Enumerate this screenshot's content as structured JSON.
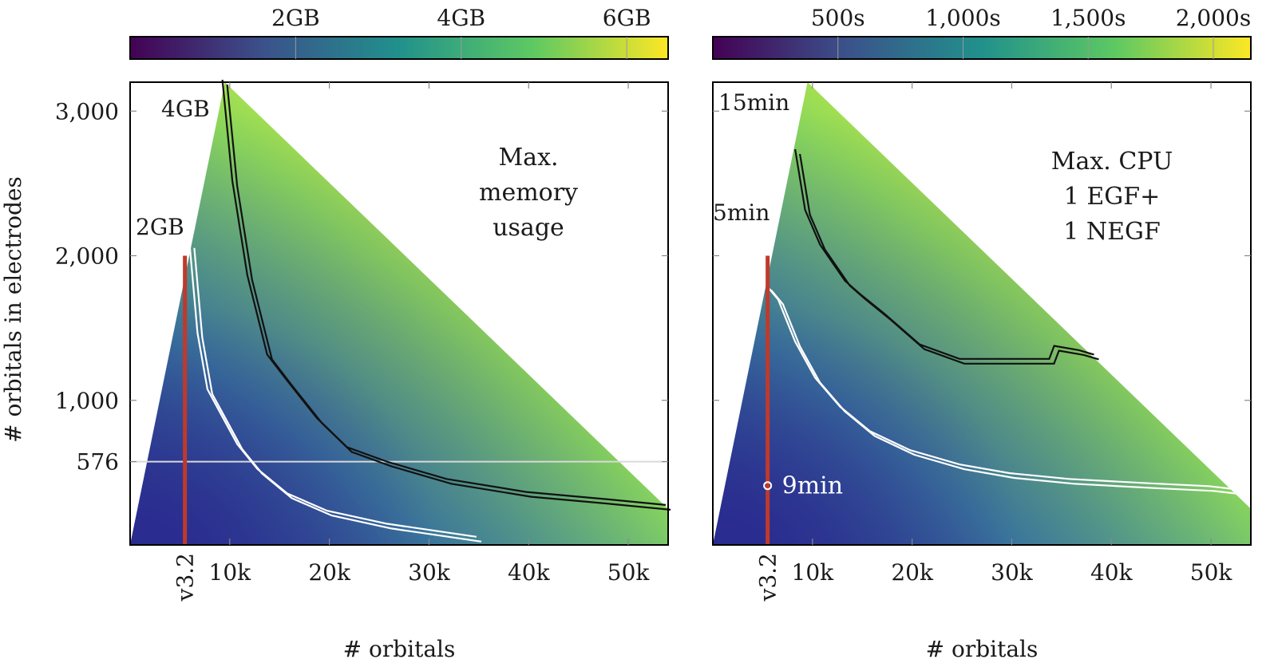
{
  "colors": {
    "viridis": [
      "#440154",
      "#3b528b",
      "#21918c",
      "#5ec962",
      "#fde725"
    ],
    "map_low": "#2a2b8f",
    "map_mid": "#3f8fa0",
    "map_high": "#eaf335",
    "contour_dark": "#111111",
    "contour_light": "#ffffff",
    "marker_v32": "#c0392b",
    "frame": "#000000",
    "tick": "#888888"
  },
  "chart_data": [
    {
      "type": "heatmap",
      "title": "",
      "annotation": [
        "Max.",
        "memory",
        "usage"
      ],
      "xlabel": "# orbitals",
      "ylabel": "# orbitals in electrodes",
      "xlim": [
        0,
        54000
      ],
      "ylim": [
        0,
        3200
      ],
      "xticks": [
        10000,
        20000,
        30000,
        40000,
        50000
      ],
      "xtick_labels": [
        "10k",
        "20k",
        "30k",
        "40k",
        "50k"
      ],
      "yticks": [
        576,
        1000,
        2000,
        3000
      ],
      "ytick_labels": [
        "576",
        "1,000",
        "2,000",
        "3,000"
      ],
      "colorbar": {
        "range": [
          0,
          6.5
        ],
        "ticks": [
          2,
          4,
          6
        ],
        "tick_labels": [
          "2GB",
          "4GB",
          "6GB"
        ]
      },
      "region": {
        "lower_left": [
          0,
          0
        ],
        "upper_apex": [
          9500,
          3200
        ],
        "right_bottom": [
          54000,
          0
        ],
        "right_top": [
          54000,
          250
        ]
      },
      "marker": {
        "label": "v3.2",
        "x": 5500,
        "y_max": 2000
      },
      "reference_line": {
        "y": 576
      },
      "contours": [
        {
          "label": "4GB",
          "level": 4,
          "color": "dark",
          "points": [
            [
              9500,
              3200
            ],
            [
              10500,
              2500
            ],
            [
              12000,
              1850
            ],
            [
              14000,
              1300
            ],
            [
              16000,
              1120
            ],
            [
              19000,
              860
            ],
            [
              22000,
              660
            ],
            [
              26000,
              560
            ],
            [
              32000,
              440
            ],
            [
              40000,
              350
            ],
            [
              48000,
              300
            ],
            [
              54000,
              260
            ]
          ]
        },
        {
          "label": "2GB",
          "level": 2,
          "color": "light",
          "points": [
            [
              6200,
              2070
            ],
            [
              7000,
              1450
            ],
            [
              8000,
              1060
            ],
            [
              9500,
              870
            ],
            [
              11000,
              680
            ],
            [
              13000,
              510
            ],
            [
              16000,
              340
            ],
            [
              20000,
              220
            ],
            [
              26000,
              130
            ],
            [
              32000,
              70
            ],
            [
              35000,
              40
            ]
          ]
        }
      ]
    },
    {
      "type": "heatmap",
      "title": "",
      "annotation": [
        "Max. CPU",
        "1 EGF+",
        "1 NEGF"
      ],
      "xlabel": "# orbitals",
      "ylabel": "",
      "xlim": [
        0,
        54000
      ],
      "ylim": [
        0,
        3200
      ],
      "xticks": [
        10000,
        20000,
        30000,
        40000,
        50000
      ],
      "xtick_labels": [
        "10k",
        "20k",
        "30k",
        "40k",
        "50k"
      ],
      "yticks": [
        1000,
        2000,
        3000
      ],
      "ytick_labels": [],
      "colorbar": {
        "range": [
          0,
          2150
        ],
        "ticks": [
          500,
          1000,
          1500,
          2000
        ],
        "tick_labels": [
          "500s",
          "1,000s",
          "1,500s",
          "2,000s"
        ]
      },
      "region": {
        "lower_left": [
          0,
          0
        ],
        "upper_apex": [
          9500,
          3200
        ],
        "right_bottom": [
          54000,
          0
        ],
        "right_top": [
          54000,
          250
        ]
      },
      "marker": {
        "label": "v3.2",
        "x": 5500,
        "y_max": 2000
      },
      "point": {
        "label": "9min",
        "x": 5500,
        "y": 410
      },
      "contours": [
        {
          "label": "15min",
          "level": 900,
          "color": "dark",
          "points": [
            [
              8500,
              2720
            ],
            [
              9500,
              2300
            ],
            [
              11000,
              2060
            ],
            [
              13500,
              1810
            ],
            [
              15000,
              1720
            ],
            [
              17500,
              1580
            ],
            [
              21000,
              1370
            ],
            [
              25000,
              1270
            ],
            [
              30000,
              1270
            ],
            [
              34000,
              1270
            ],
            [
              34500,
              1360
            ],
            [
              37000,
              1330
            ],
            [
              38500,
              1300
            ]
          ]
        },
        {
          "label": "5min",
          "level": 300,
          "color": "light",
          "points": [
            [
              5600,
              1780
            ],
            [
              6800,
              1680
            ],
            [
              8500,
              1390
            ],
            [
              10500,
              1140
            ],
            [
              13000,
              940
            ],
            [
              16000,
              770
            ],
            [
              20000,
              640
            ],
            [
              25000,
              540
            ],
            [
              30000,
              480
            ],
            [
              36000,
              440
            ],
            [
              44000,
              410
            ],
            [
              50000,
              390
            ],
            [
              52500,
              370
            ]
          ]
        }
      ]
    }
  ]
}
